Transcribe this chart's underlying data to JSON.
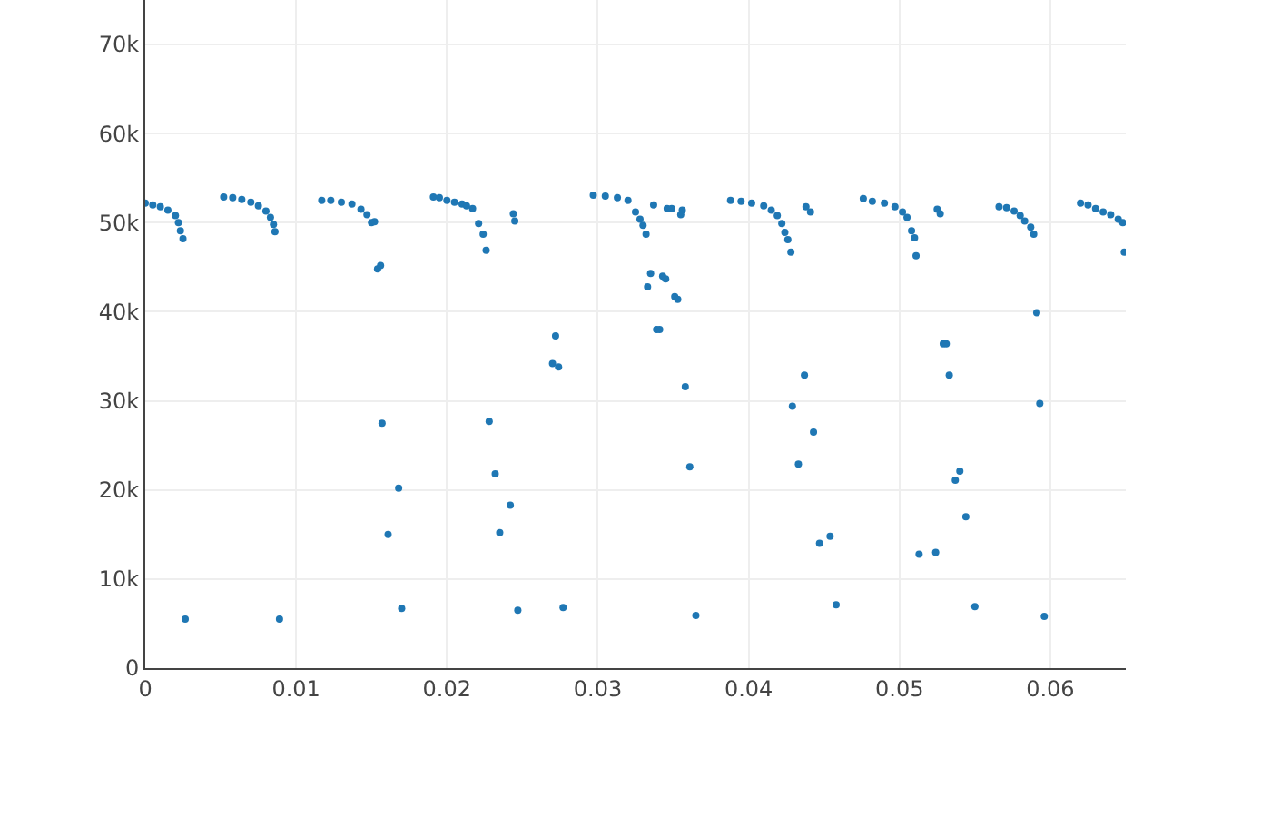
{
  "chart_data": {
    "type": "scatter",
    "marker": "circle",
    "grid": true,
    "xlim": [
      0,
      0.065
    ],
    "ylim": [
      0,
      75000
    ],
    "xticks": [
      0,
      0.01,
      0.02,
      0.03,
      0.04,
      0.05,
      0.06
    ],
    "yticks": [
      0,
      {
        "value": 10000,
        "label": "10k"
      },
      {
        "value": 20000,
        "label": "20k"
      },
      {
        "value": 30000,
        "label": "30k"
      },
      {
        "value": 40000,
        "label": "40k"
      },
      {
        "value": 50000,
        "label": "50k"
      },
      {
        "value": 60000,
        "label": "60k"
      },
      {
        "value": 70000,
        "label": "70k"
      }
    ],
    "series": [
      {
        "color": "#1f77b4",
        "x": [
          0,
          0.0005,
          0.001,
          0.0015,
          0.002,
          0.0022,
          0.00233,
          0.0025,
          0.00265,
          0.0052,
          0.0058,
          0.0064,
          0.007,
          0.0075,
          0.008,
          0.0083,
          0.0085,
          0.0086,
          0.0089,
          0.0117,
          0.0123,
          0.013,
          0.0137,
          0.0143,
          0.0147,
          0.015,
          0.0152,
          0.0154,
          0.0156,
          0.0157,
          0.0168,
          0.0161,
          0.017,
          0.0191,
          0.0195,
          0.02,
          0.0205,
          0.021,
          0.0213,
          0.0217,
          0.0221,
          0.0224,
          0.0226,
          0.0244,
          0.0245,
          0.0272,
          0.027,
          0.0274,
          0.0228,
          0.0232,
          0.0242,
          0.0235,
          0.0247,
          0.0277,
          0.0297,
          0.0305,
          0.0313,
          0.032,
          0.0325,
          0.0328,
          0.033,
          0.0332,
          0.0337,
          0.0346,
          0.0349,
          0.0356,
          0.0355,
          0.0335,
          0.0333,
          0.0343,
          0.0345,
          0.0351,
          0.0353,
          0.0339,
          0.0341,
          0.0358,
          0.0361,
          0.0365,
          0.0388,
          0.0395,
          0.0402,
          0.041,
          0.0415,
          0.0419,
          0.0422,
          0.0424,
          0.0426,
          0.0428,
          0.0438,
          0.0441,
          0.0437,
          0.0429,
          0.0443,
          0.0433,
          0.0447,
          0.0454,
          0.0458,
          0.0476,
          0.0482,
          0.049,
          0.0497,
          0.0502,
          0.0505,
          0.0508,
          0.051,
          0.0511,
          0.0525,
          0.0527,
          0.0529,
          0.0531,
          0.0533,
          0.054,
          0.0537,
          0.0544,
          0.0513,
          0.0524,
          0.055,
          0.0566,
          0.0571,
          0.0576,
          0.058,
          0.0583,
          0.0587,
          0.0589,
          0.0591,
          0.0593,
          0.0596,
          0.062,
          0.0625,
          0.063,
          0.0635,
          0.064,
          0.0645,
          0.0648,
          0.0649
        ],
        "values": [
          52200,
          52000,
          51800,
          51400,
          50800,
          50000,
          49100,
          48200,
          5500,
          52900,
          52800,
          52600,
          52300,
          51900,
          51300,
          50600,
          49800,
          49000,
          5500,
          52500,
          52500,
          52300,
          52100,
          51500,
          50900,
          50000,
          50100,
          44800,
          45200,
          27500,
          20200,
          15000,
          6700,
          52900,
          52800,
          52500,
          52300,
          52100,
          51900,
          51600,
          49900,
          48700,
          46900,
          51000,
          50200,
          37300,
          34200,
          33800,
          27700,
          21800,
          18300,
          15200,
          6500,
          6800,
          53100,
          53000,
          52800,
          52500,
          51200,
          50400,
          49700,
          48700,
          52000,
          51600,
          51600,
          51400,
          50900,
          44300,
          42800,
          44000,
          43700,
          41700,
          41400,
          38000,
          38000,
          31600,
          22600,
          5900,
          52500,
          52400,
          52200,
          51900,
          51400,
          50800,
          49900,
          48900,
          48100,
          46700,
          51800,
          51200,
          32900,
          29400,
          26500,
          22900,
          14000,
          14800,
          7100,
          52700,
          52400,
          52200,
          51800,
          51200,
          50600,
          49100,
          48300,
          46300,
          51500,
          51000,
          36400,
          36400,
          32900,
          22100,
          21100,
          17000,
          12800,
          13000,
          6900,
          51800,
          51700,
          51300,
          50800,
          50200,
          49500,
          48700,
          39900,
          29700,
          5800,
          52200,
          52000,
          51600,
          51200,
          50900,
          50400,
          50000,
          46700
        ]
      }
    ]
  }
}
